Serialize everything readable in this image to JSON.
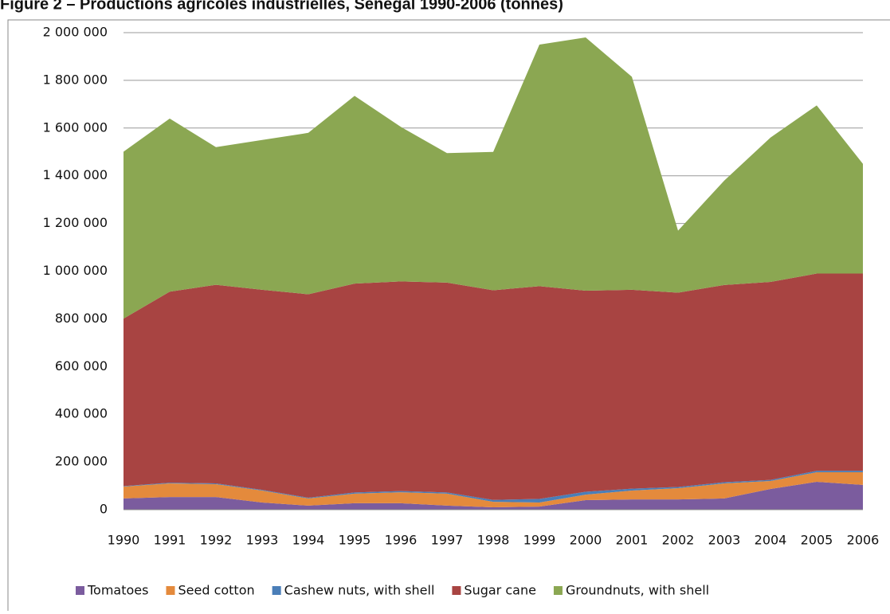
{
  "chart_data": {
    "type": "stacked-area",
    "title": "Figure 2 – Productions agricoles industrielles, Senegal 1990-2006 (tonnes)",
    "categories": [
      "1990",
      "1991",
      "1992",
      "1993",
      "1994",
      "1995",
      "1996",
      "1997",
      "1998",
      "1999",
      "2000",
      "2001",
      "2002",
      "2003",
      "2004",
      "2005",
      "2006"
    ],
    "series": [
      {
        "name": "Tomatoes",
        "color": "#7b5c9e",
        "values": [
          47000,
          53000,
          53000,
          30000,
          17000,
          27000,
          27000,
          17000,
          10000,
          13000,
          40000,
          43000,
          43000,
          47000,
          87000,
          117000,
          104000
        ]
      },
      {
        "name": "Seed cotton",
        "color": "#e48a3c",
        "values": [
          50000,
          57000,
          54000,
          50000,
          30000,
          40000,
          46000,
          50000,
          23000,
          17000,
          23000,
          37000,
          47000,
          63000,
          33000,
          40000,
          53000
        ]
      },
      {
        "name": "Cashew nuts, with shell",
        "color": "#4a7eb8",
        "values": [
          2000,
          3000,
          3000,
          3000,
          3000,
          5000,
          5000,
          5000,
          8000,
          15000,
          12000,
          8000,
          5000,
          5000,
          5000,
          6000,
          6000
        ]
      },
      {
        "name": "Sugar cane",
        "color": "#a84442",
        "values": [
          702000,
          801000,
          833000,
          839000,
          853000,
          876000,
          879000,
          880000,
          879000,
          892000,
          843000,
          834000,
          815000,
          827000,
          830000,
          827000,
          827000
        ]
      },
      {
        "name": "Groundnuts, with shell",
        "color": "#8ba752",
        "values": [
          700000,
          726000,
          577000,
          628000,
          677000,
          787000,
          648000,
          543000,
          580000,
          1013000,
          1062000,
          893000,
          260000,
          438000,
          605000,
          705000,
          460000
        ]
      }
    ],
    "ylim": [
      0,
      2000000
    ],
    "yticks": [
      0,
      {
        "value": 200000,
        "label": "200 000"
      },
      {
        "value": 400000,
        "label": "400 000"
      },
      {
        "value": 600000,
        "label": "600 000"
      },
      {
        "value": 800000,
        "label": "800 000"
      },
      {
        "value": 1000000,
        "label": "1 000 000"
      },
      {
        "value": 1200000,
        "label": "1 200 000"
      },
      {
        "value": 1400000,
        "label": "1 400 000"
      },
      {
        "value": 1600000,
        "label": "1 600 000"
      },
      {
        "value": 1800000,
        "label": "1 800 000"
      },
      {
        "value": 2000000,
        "label": "2 000 000"
      }
    ],
    "grid": true,
    "legend": "bottom"
  }
}
